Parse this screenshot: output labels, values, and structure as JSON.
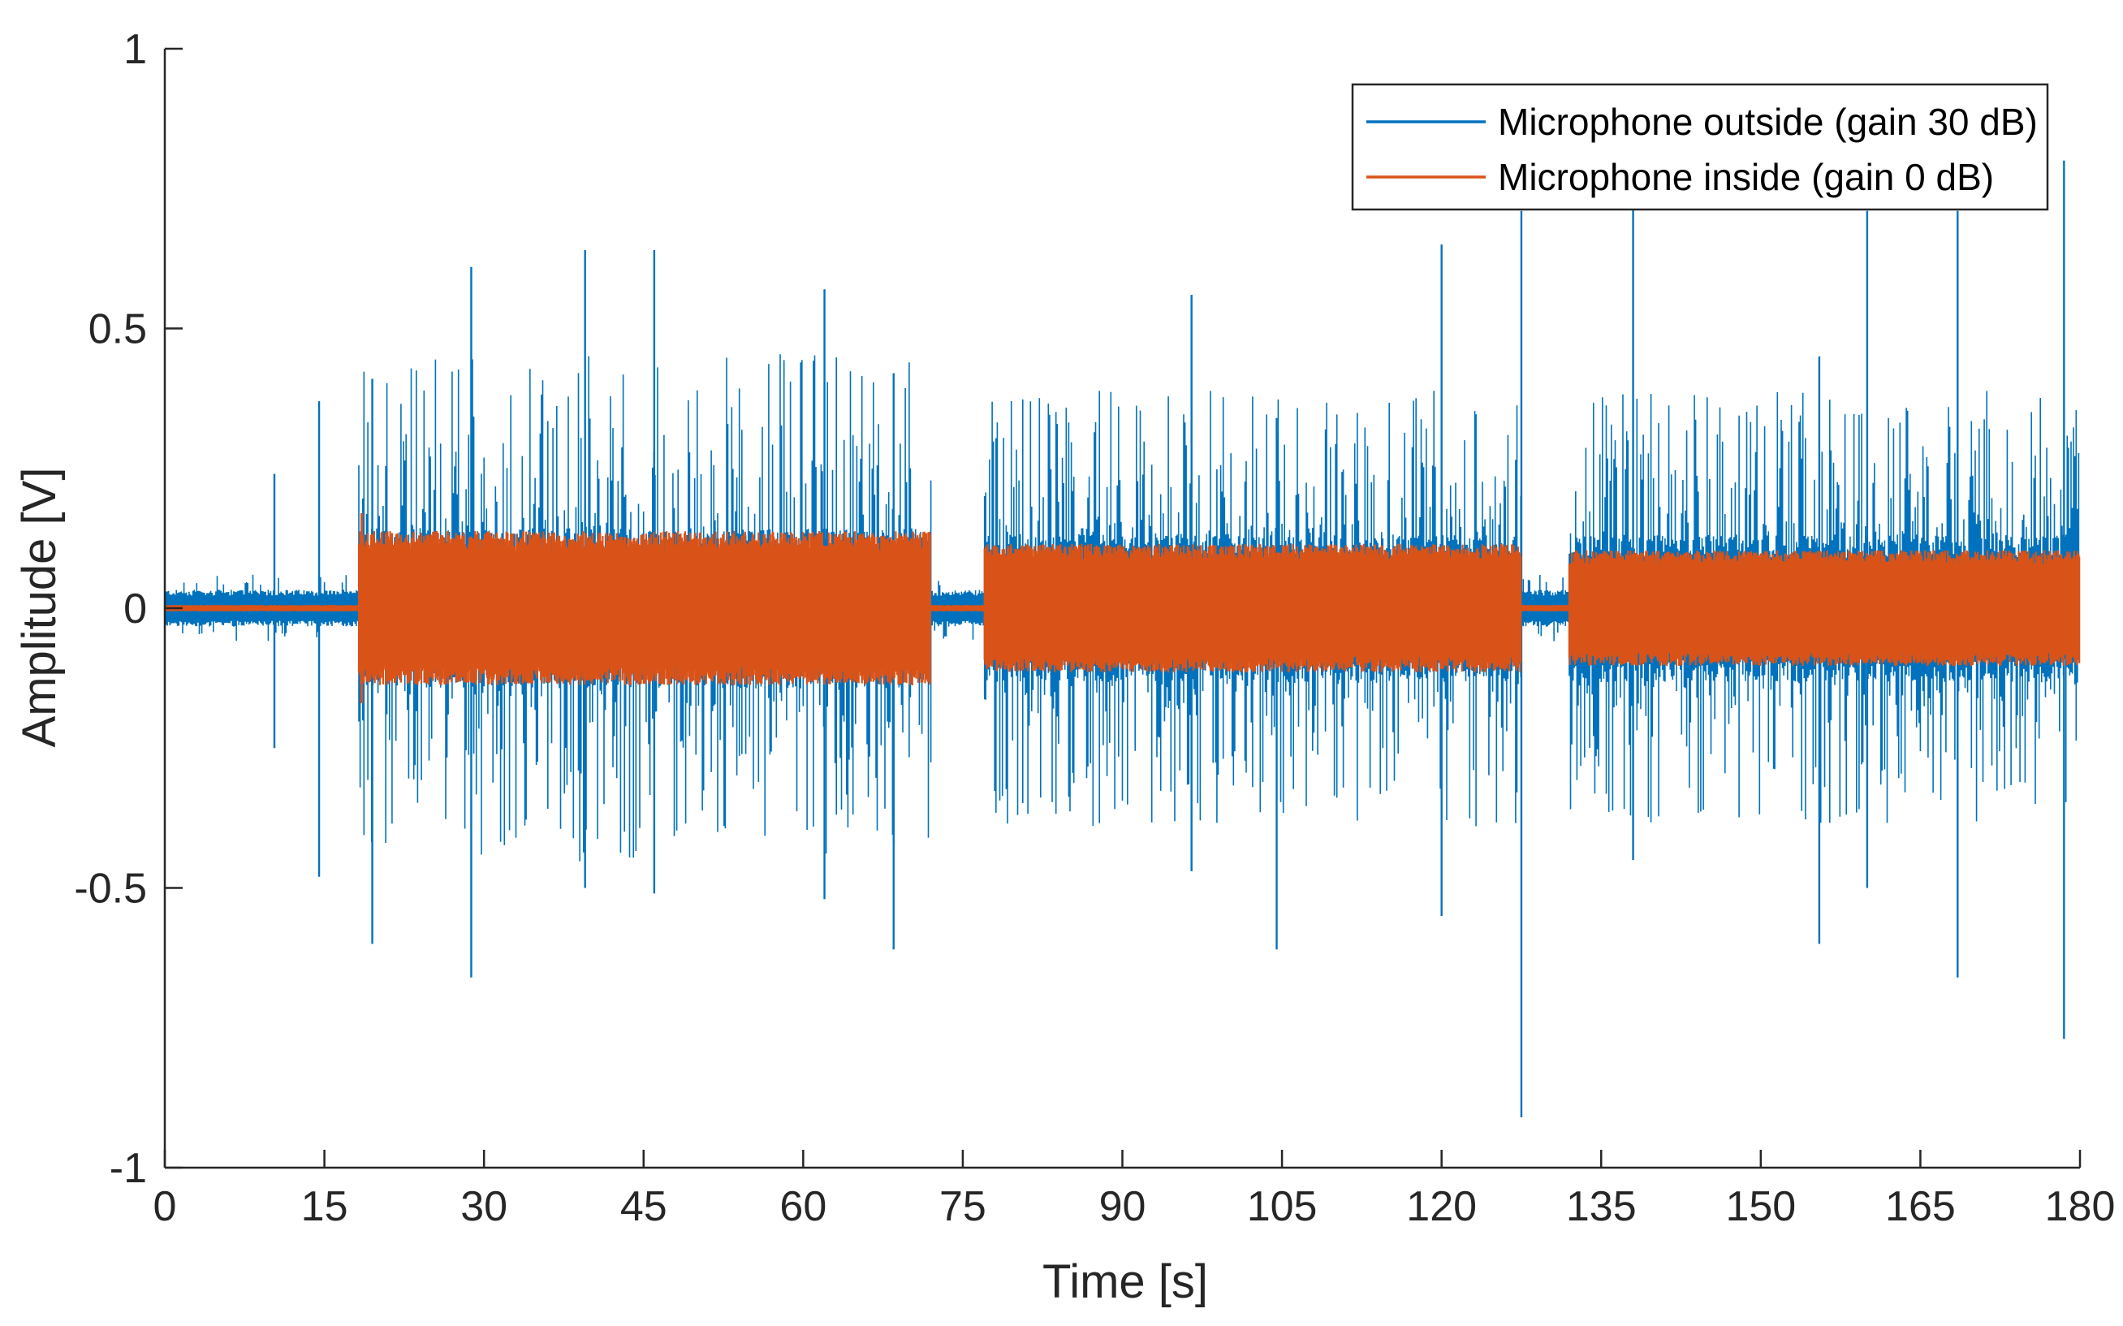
{
  "chart_data": {
    "type": "line",
    "title": "",
    "xlabel": "Time [s]",
    "ylabel": "Amplitude [V]",
    "xlim": [
      0,
      180
    ],
    "ylim": [
      -1,
      1
    ],
    "xticks": [
      0,
      15,
      30,
      45,
      60,
      75,
      90,
      105,
      120,
      135,
      150,
      165,
      180
    ],
    "yticks": [
      -1,
      -0.5,
      0,
      0.5,
      1
    ],
    "xtick_labels": [
      "0",
      "15",
      "30",
      "45",
      "60",
      "75",
      "90",
      "105",
      "120",
      "135",
      "150",
      "165",
      "180"
    ],
    "ytick_labels": [
      "-1",
      "-0.5",
      "0",
      "0.5",
      "1"
    ],
    "legend_position": "top-right",
    "series": [
      {
        "name": "Microphone outside (gain 30 dB)",
        "color": "#0072BD",
        "segments": [
          {
            "t_start": 0,
            "t_end": 18.2,
            "background_amplitude": 0.03,
            "typical_peak": 0.05
          },
          {
            "t_start": 18.2,
            "t_end": 72,
            "background_amplitude": 0.13,
            "typical_peak": 0.35
          },
          {
            "t_start": 72,
            "t_end": 77,
            "background_amplitude": 0.03,
            "typical_peak": 0.05
          },
          {
            "t_start": 77,
            "t_end": 127.5,
            "background_amplitude": 0.12,
            "typical_peak": 0.3
          },
          {
            "t_start": 127.5,
            "t_end": 132,
            "background_amplitude": 0.03,
            "typical_peak": 0.05
          },
          {
            "t_start": 132,
            "t_end": 180,
            "background_amplitude": 0.12,
            "typical_peak": 0.3
          }
        ],
        "peaks": [
          {
            "t": 10.3,
            "max": 0.24,
            "min": -0.25
          },
          {
            "t": 14.5,
            "max": 0.37,
            "min": -0.48
          },
          {
            "t": 19.5,
            "max": 0.41,
            "min": -0.6
          },
          {
            "t": 28.8,
            "max": 0.61,
            "min": -0.66
          },
          {
            "t": 39.5,
            "max": 0.64,
            "min": -0.5
          },
          {
            "t": 46.0,
            "max": 0.64,
            "min": -0.51
          },
          {
            "t": 62.0,
            "max": 0.57,
            "min": -0.52
          },
          {
            "t": 68.5,
            "max": 0.42,
            "min": -0.61
          },
          {
            "t": 96.5,
            "max": 0.56,
            "min": -0.47
          },
          {
            "t": 104.5,
            "max": 0.34,
            "min": -0.61
          },
          {
            "t": 120.0,
            "max": 0.65,
            "min": -0.55
          },
          {
            "t": 127.5,
            "max": 0.71,
            "min": -0.91
          },
          {
            "t": 138.0,
            "max": 0.72,
            "min": -0.45
          },
          {
            "t": 155.5,
            "max": 0.45,
            "min": -0.6
          },
          {
            "t": 160.0,
            "max": 0.71,
            "min": -0.5
          },
          {
            "t": 168.5,
            "max": 0.71,
            "min": -0.66
          },
          {
            "t": 178.5,
            "max": 0.8,
            "min": -0.77
          }
        ]
      },
      {
        "name": "Microphone inside (gain 0 dB)",
        "color": "#D95319",
        "segments": [
          {
            "t_start": 0,
            "t_end": 18.2,
            "background_amplitude": 0.005,
            "typical_peak": 0.008
          },
          {
            "t_start": 18.2,
            "t_end": 72,
            "background_amplitude": 0.12,
            "typical_peak": 0.14
          },
          {
            "t_start": 72,
            "t_end": 77,
            "background_amplitude": 0.005,
            "typical_peak": 0.008
          },
          {
            "t_start": 77,
            "t_end": 127.5,
            "background_amplitude": 0.1,
            "typical_peak": 0.11
          },
          {
            "t_start": 127.5,
            "t_end": 132,
            "background_amplitude": 0.005,
            "typical_peak": 0.008
          },
          {
            "t_start": 132,
            "t_end": 180,
            "background_amplitude": 0.09,
            "typical_peak": 0.1
          }
        ],
        "peaks": [
          {
            "t": 18.5,
            "max": 0.17,
            "min": -0.17
          }
        ]
      }
    ]
  }
}
